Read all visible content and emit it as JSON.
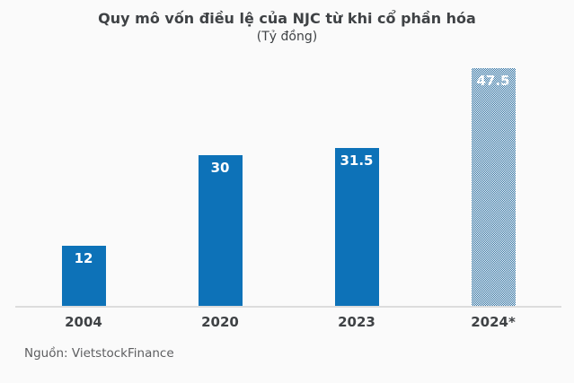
{
  "header": {
    "title": "Quy mô vốn điều lệ của NJC từ khi cổ phần hóa",
    "subtitle": "(Tỷ đồng)"
  },
  "source": {
    "text": "Nguồn: VietstockFinance"
  },
  "colors": {
    "background": "#fafafa",
    "bar_solid": "#0d72b8",
    "bar_pattern": "#2f72a3",
    "pattern_light": "#fbfbfb",
    "axis_line": "#dcdcdc",
    "text_dark": "#3f4245",
    "text_muted": "#5d5e60",
    "value_label": "#ffffff"
  },
  "chart_data": {
    "type": "bar",
    "title": "Quy mô vốn điều lệ của NJC từ khi cổ phần hóa",
    "subtitle": "(Tỷ đồng)",
    "categories": [
      "2004",
      "2020",
      "2023",
      "2024*"
    ],
    "values": [
      12,
      30,
      31.5,
      47.5
    ],
    "value_labels": [
      "12",
      "30",
      "31.5",
      "47.5"
    ],
    "bar_styles": [
      "solid",
      "solid",
      "solid",
      "checker"
    ],
    "xlabel": "",
    "ylabel": "Tỷ đồng",
    "ylim": [
      0,
      48
    ],
    "grid": false,
    "legend": "none",
    "y_axis_visible": false,
    "value_labels_position": "inside-top"
  }
}
